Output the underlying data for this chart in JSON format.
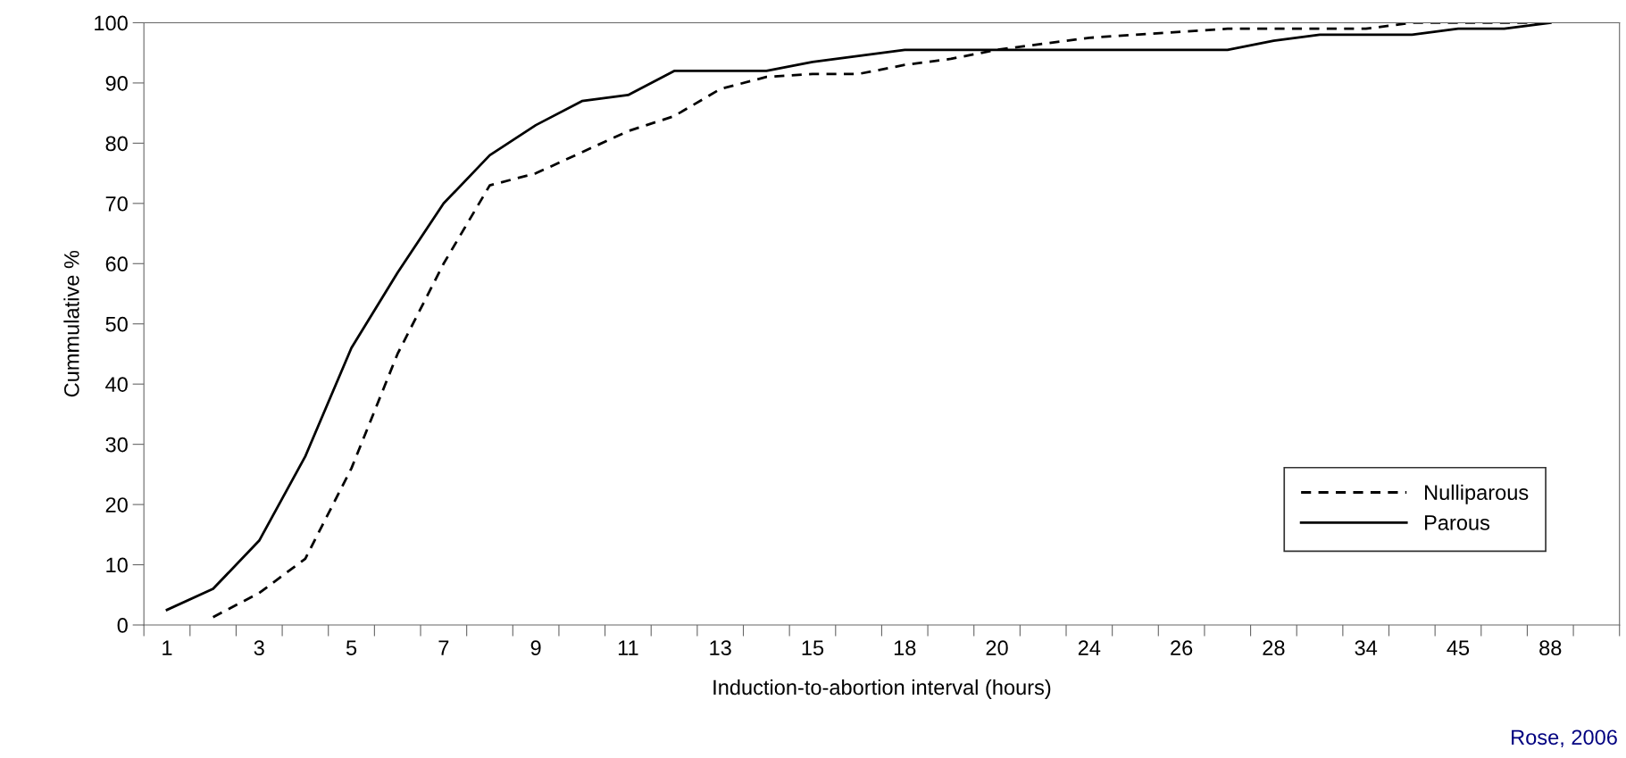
{
  "chart_data": {
    "type": "line",
    "xlabel": "Induction-to-abortion interval (hours)",
    "ylabel": "Cummulative %",
    "categories": [
      "1",
      null,
      "3",
      null,
      "5",
      null,
      "7",
      null,
      "9",
      null,
      "11",
      null,
      "13",
      null,
      "15",
      null,
      "18",
      null,
      "20",
      null,
      "24",
      null,
      "26",
      null,
      "28",
      null,
      "34",
      null,
      "45",
      null,
      "88",
      null
    ],
    "ylim": [
      0,
      100
    ],
    "yticks": [
      0,
      10,
      20,
      30,
      40,
      50,
      60,
      70,
      80,
      90,
      100
    ],
    "series": [
      {
        "name": "Nulliparous",
        "color": "#000000",
        "line_style": "dashed",
        "values": [
          null,
          1.3,
          5.3,
          11,
          26,
          45,
          60,
          73,
          75,
          78.5,
          82,
          84.5,
          89,
          91,
          91.5,
          91.5,
          93,
          94,
          95.5,
          96.5,
          97.5,
          98,
          98.5,
          99,
          99,
          99,
          99,
          100,
          100,
          100,
          100,
          null
        ]
      },
      {
        "name": "Parous",
        "color": "#000000",
        "line_style": "solid",
        "values": [
          2.5,
          6,
          14,
          28,
          46,
          58.5,
          70,
          78,
          83,
          87,
          88,
          92,
          92,
          92,
          93.5,
          94.5,
          95.5,
          95.5,
          95.5,
          95.5,
          95.5,
          95.5,
          95.5,
          95.5,
          97,
          98,
          98,
          98,
          99,
          99,
          100,
          null
        ]
      }
    ],
    "legend": "lower right",
    "grid": false,
    "annotations": [
      "Rose, 2006"
    ]
  }
}
